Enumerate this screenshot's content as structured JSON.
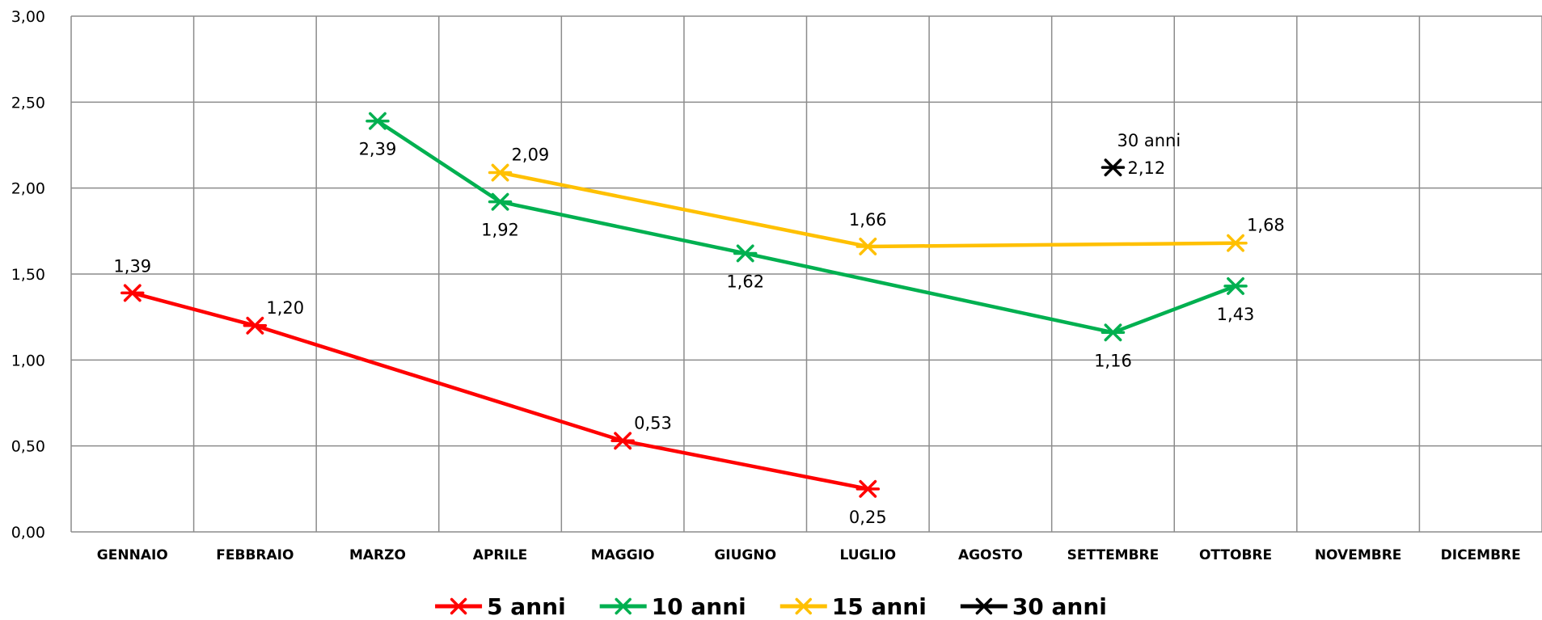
{
  "chart_data": {
    "type": "line",
    "title": "",
    "xlabel": "",
    "ylabel": "",
    "categories": [
      "GENNAIO",
      "FEBBRAIO",
      "MARZO",
      "APRILE",
      "MAGGIO",
      "GIUGNO",
      "LUGLIO",
      "AGOSTO",
      "SETTEMBRE",
      "OTTOBRE",
      "NOVEMBRE",
      "DICEMBRE"
    ],
    "y_ticks": [
      "0,00",
      "0,50",
      "1,00",
      "1,50",
      "2,00",
      "2,50",
      "3,00"
    ],
    "ylim": [
      0,
      3
    ],
    "grid": true,
    "legend_position": "bottom",
    "series": [
      {
        "name": "5 anni",
        "color": "#ff0000",
        "marker": "asterisk",
        "points": [
          {
            "x": "GENNAIO",
            "y": 1.39,
            "label": "1,39",
            "label_pos": "above"
          },
          {
            "x": "FEBBRAIO",
            "y": 1.2,
            "label": "1,20",
            "label_pos": "above-right"
          },
          {
            "x": "MAGGIO",
            "y": 0.53,
            "label": "0,53",
            "label_pos": "above-right"
          },
          {
            "x": "LUGLIO",
            "y": 0.25,
            "label": "0,25",
            "label_pos": "below"
          }
        ]
      },
      {
        "name": "10 anni",
        "color": "#00b050",
        "marker": "asterisk",
        "points": [
          {
            "x": "MARZO",
            "y": 2.39,
            "label": "2,39",
            "label_pos": "below"
          },
          {
            "x": "APRILE",
            "y": 1.92,
            "label": "1,92",
            "label_pos": "below"
          },
          {
            "x": "GIUGNO",
            "y": 1.62,
            "label": "1,62",
            "label_pos": "below"
          },
          {
            "x": "SETTEMBRE",
            "y": 1.16,
            "label": "1,16",
            "label_pos": "below"
          },
          {
            "x": "OTTOBRE",
            "y": 1.43,
            "label": "1,43",
            "label_pos": "below"
          }
        ]
      },
      {
        "name": "15 anni",
        "color": "#ffc000",
        "marker": "asterisk",
        "points": [
          {
            "x": "APRILE",
            "y": 2.09,
            "label": "2,09",
            "label_pos": "above-right"
          },
          {
            "x": "LUGLIO",
            "y": 1.66,
            "label": "1,66",
            "label_pos": "above"
          },
          {
            "x": "OTTOBRE",
            "y": 1.68,
            "label": "1,68",
            "label_pos": "above-right"
          }
        ]
      },
      {
        "name": "30 anni",
        "color": "#000000",
        "marker": "asterisk",
        "points": [
          {
            "x": "SETTEMBRE",
            "y": 2.12,
            "label": "2,12",
            "label_pos": "right",
            "series_label": "30 anni"
          }
        ]
      }
    ]
  }
}
